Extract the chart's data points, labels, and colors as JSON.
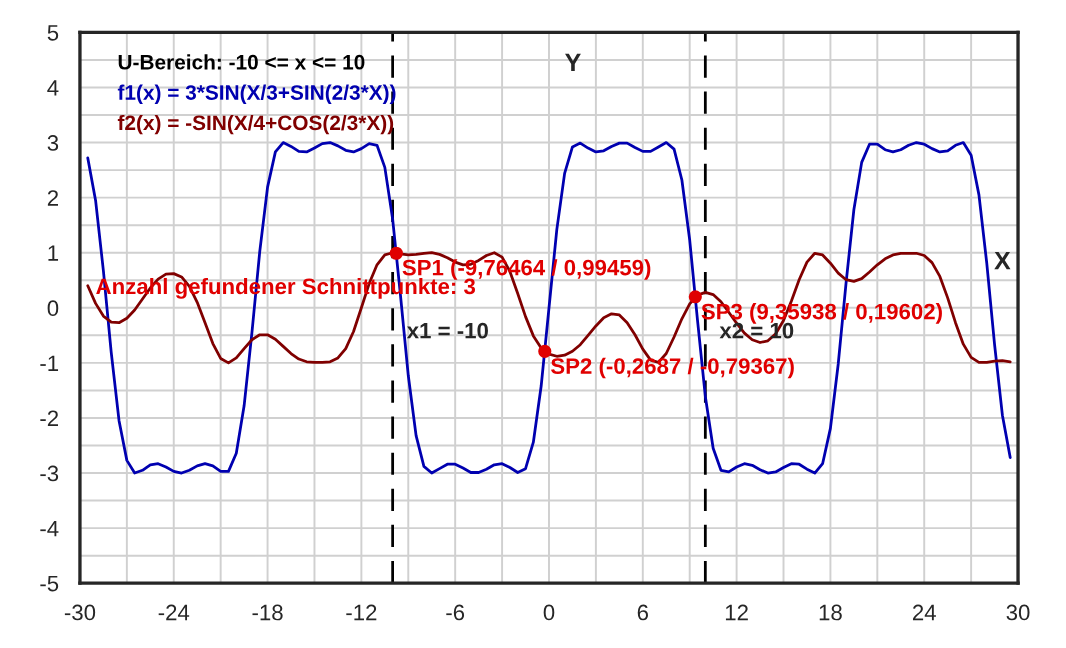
{
  "chart_data": {
    "type": "line",
    "x": [
      -29.5,
      -29,
      -28.5,
      -28,
      -27.5,
      -27,
      -26.5,
      -26,
      -25.5,
      -25,
      -24.5,
      -24,
      -23.5,
      -23,
      -22.5,
      -22,
      -21.5,
      -21,
      -20.5,
      -20,
      -19.5,
      -19,
      -18.5,
      -18,
      -17.5,
      -17,
      -16.5,
      -16,
      -15.5,
      -15,
      -14.5,
      -14,
      -13.5,
      -13,
      -12.5,
      -12,
      -11.5,
      -11,
      -10.5,
      -10,
      -9.5,
      -9,
      -8.5,
      -8,
      -7.5,
      -7,
      -6.5,
      -6,
      -5.5,
      -5,
      -4.5,
      -4,
      -3.5,
      -3,
      -2.5,
      -2,
      -1.5,
      -1,
      -0.5,
      0,
      0.5,
      1,
      1.5,
      2,
      2.5,
      3,
      3.5,
      4,
      4.5,
      5,
      5.5,
      6,
      6.5,
      7,
      7.5,
      8,
      8.5,
      9,
      9.5,
      10,
      10.5,
      11,
      11.5,
      12,
      12.5,
      13,
      13.5,
      14,
      14.5,
      15,
      15.5,
      16,
      16.5,
      17,
      17.5,
      18,
      18.5,
      19,
      19.5,
      20,
      20.5,
      21,
      21.5,
      22,
      22.5,
      23,
      23.5,
      24,
      24.5,
      25,
      25.5,
      26,
      26.5,
      27,
      27.5,
      28,
      28.5,
      29,
      29.5
    ],
    "series": [
      {
        "color": "#0000b0",
        "values": [
          2.72,
          1.95,
          0.67,
          -0.81,
          -2.05,
          -2.77,
          -3.0,
          -2.95,
          -2.85,
          -2.83,
          -2.89,
          -2.97,
          -3.0,
          -2.95,
          -2.87,
          -2.83,
          -2.87,
          -2.97,
          -2.97,
          -2.64,
          -1.78,
          -0.45,
          1.02,
          2.19,
          2.83,
          3.0,
          2.93,
          2.84,
          2.83,
          2.9,
          2.98,
          3.0,
          2.94,
          2.86,
          2.83,
          2.89,
          2.98,
          2.95,
          2.55,
          1.61,
          0.23,
          -1.23,
          -2.32,
          -2.88,
          -3.0,
          -2.92,
          -2.84,
          -2.84,
          -2.91,
          -2.99,
          -2.99,
          -2.93,
          -2.85,
          -2.83,
          -2.9,
          -2.99,
          -2.92,
          -2.44,
          -1.42,
          0.0,
          1.42,
          2.44,
          2.92,
          2.99,
          2.9,
          2.83,
          2.85,
          2.93,
          2.99,
          2.99,
          2.91,
          2.84,
          2.84,
          2.92,
          3.0,
          2.88,
          2.32,
          1.23,
          -0.23,
          -1.61,
          -2.55,
          -2.95,
          -2.98,
          -2.89,
          -2.83,
          -2.86,
          -2.94,
          -3.0,
          -2.98,
          -2.9,
          -2.83,
          -2.84,
          -2.93,
          -3.0,
          -2.83,
          -2.19,
          -1.02,
          0.45,
          1.78,
          2.64,
          2.97,
          2.97,
          2.87,
          2.83,
          2.87,
          2.95,
          3.0,
          2.97,
          2.89,
          2.83,
          2.85,
          2.95,
          3.0,
          2.77,
          2.05,
          0.81,
          -0.67,
          -1.95,
          -2.72
        ]
      },
      {
        "color": "#800000",
        "values": [
          0.4,
          0.08,
          -0.15,
          -0.26,
          -0.27,
          -0.19,
          -0.04,
          0.16,
          0.36,
          0.52,
          0.61,
          0.62,
          0.56,
          0.39,
          0.1,
          -0.27,
          -0.65,
          -0.92,
          -1.0,
          -0.91,
          -0.74,
          -0.58,
          -0.49,
          -0.49,
          -0.57,
          -0.7,
          -0.83,
          -0.93,
          -0.98,
          -0.99,
          -0.99,
          -0.98,
          -0.91,
          -0.74,
          -0.43,
          -0.0,
          0.44,
          0.78,
          0.96,
          1.0,
          0.98,
          0.96,
          0.97,
          0.99,
          1.0,
          0.97,
          0.91,
          0.83,
          0.78,
          0.79,
          0.86,
          0.95,
          1.0,
          0.92,
          0.66,
          0.26,
          -0.16,
          -0.51,
          -0.73,
          -0.84,
          -0.88,
          -0.86,
          -0.79,
          -0.67,
          -0.5,
          -0.33,
          -0.18,
          -0.11,
          -0.13,
          -0.27,
          -0.49,
          -0.75,
          -0.95,
          -0.99,
          -0.83,
          -0.53,
          -0.2,
          0.07,
          0.23,
          0.28,
          0.24,
          0.11,
          -0.08,
          -0.28,
          -0.46,
          -0.58,
          -0.63,
          -0.6,
          -0.47,
          -0.23,
          0.12,
          0.51,
          0.83,
          0.99,
          0.96,
          0.81,
          0.63,
          0.51,
          0.48,
          0.53,
          0.65,
          0.78,
          0.89,
          0.96,
          0.99,
          0.99,
          0.99,
          0.95,
          0.82,
          0.57,
          0.18,
          -0.27,
          -0.66,
          -0.9,
          -0.99,
          -0.99,
          -0.97,
          -0.96,
          -0.98
        ]
      },
      {
        "type": "scatter",
        "color": "#e00000",
        "x": [
          -9.76464,
          -0.2687,
          9.35938
        ],
        "values": [
          0.99,
          -0.79,
          0.2
        ]
      }
    ],
    "xlabel": "X",
    "ylabel": "Y",
    "xlim": [
      -30,
      30
    ],
    "ylim": [
      -5,
      5
    ],
    "xticks": [
      -30,
      -24,
      -18,
      -12,
      -6,
      0,
      6,
      12,
      18,
      24,
      30
    ],
    "yticks": [
      -5,
      -4,
      -3,
      -2,
      -1,
      0,
      1,
      2,
      3,
      4,
      5
    ],
    "grid": true,
    "line_style": "solid",
    "ref_lines": [
      {
        "axis": "x",
        "value": -10,
        "label": "x1 = -10",
        "color": "#000000",
        "line_style": "dashed"
      },
      {
        "axis": "x",
        "value": 10,
        "label": "x2 = 10",
        "color": "#000000",
        "line_style": "dashed"
      }
    ],
    "annotations": [
      "U-Bereich: -10 <= x <= 10",
      "f1(x) = 3*SIN(X/3+SIN(2/3*X))",
      "f2(x) = -SIN(X/4+COS(2/3*X))",
      "Anzahl gefundener Schnittpunkte: 3",
      {
        "text": "SP1 (-9,76464 / 0,99459)",
        "x": -9.76464,
        "y": 0.99459
      },
      {
        "text": "SP2 (-0,2687 / -0,79367)",
        "x": -0.2687,
        "y": -0.79367
      },
      {
        "text": "SP3 (9,35938 / 0,19602)",
        "x": 9.35938,
        "y": 0.19602
      }
    ]
  }
}
